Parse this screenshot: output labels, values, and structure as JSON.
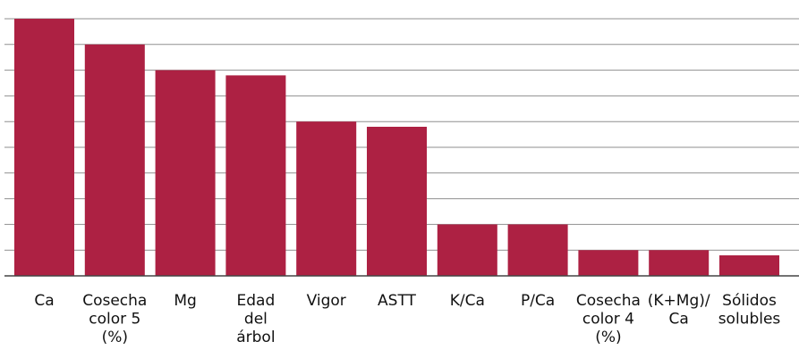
{
  "chart_data": {
    "type": "bar",
    "categories": [
      "Ca",
      "Cosecha color 5 (%)",
      "Mg",
      "Edad del árbol",
      "Vigor",
      "ASTT",
      "K/Ca",
      "P/Ca",
      "Cosecha color 4 (%)",
      "(K+Mg)/ Ca",
      "Sólidos solubles"
    ],
    "category_lines": [
      [
        "Ca"
      ],
      [
        "Cosecha",
        "color 5",
        "(%)"
      ],
      [
        "Mg"
      ],
      [
        "Edad",
        "del",
        "árbol"
      ],
      [
        "Vigor"
      ],
      [
        "ASTT"
      ],
      [
        "K/Ca"
      ],
      [
        "P/Ca"
      ],
      [
        "Cosecha",
        "color 4",
        "(%)"
      ],
      [
        "(K+Mg)/",
        "Ca"
      ],
      [
        "Sólidos",
        "solubles"
      ]
    ],
    "values": [
      10,
      9.0,
      8.0,
      7.8,
      6.0,
      5.8,
      2.0,
      2.0,
      1.0,
      1.0,
      0.8
    ],
    "title": "",
    "xlabel": "",
    "ylabel": "",
    "ylim": [
      0,
      10
    ],
    "grid": true,
    "legend": "none",
    "colors": {
      "bar": "#ad2143",
      "grid": "#8f8f8f",
      "axis": "#444444",
      "text": "#111111"
    }
  }
}
